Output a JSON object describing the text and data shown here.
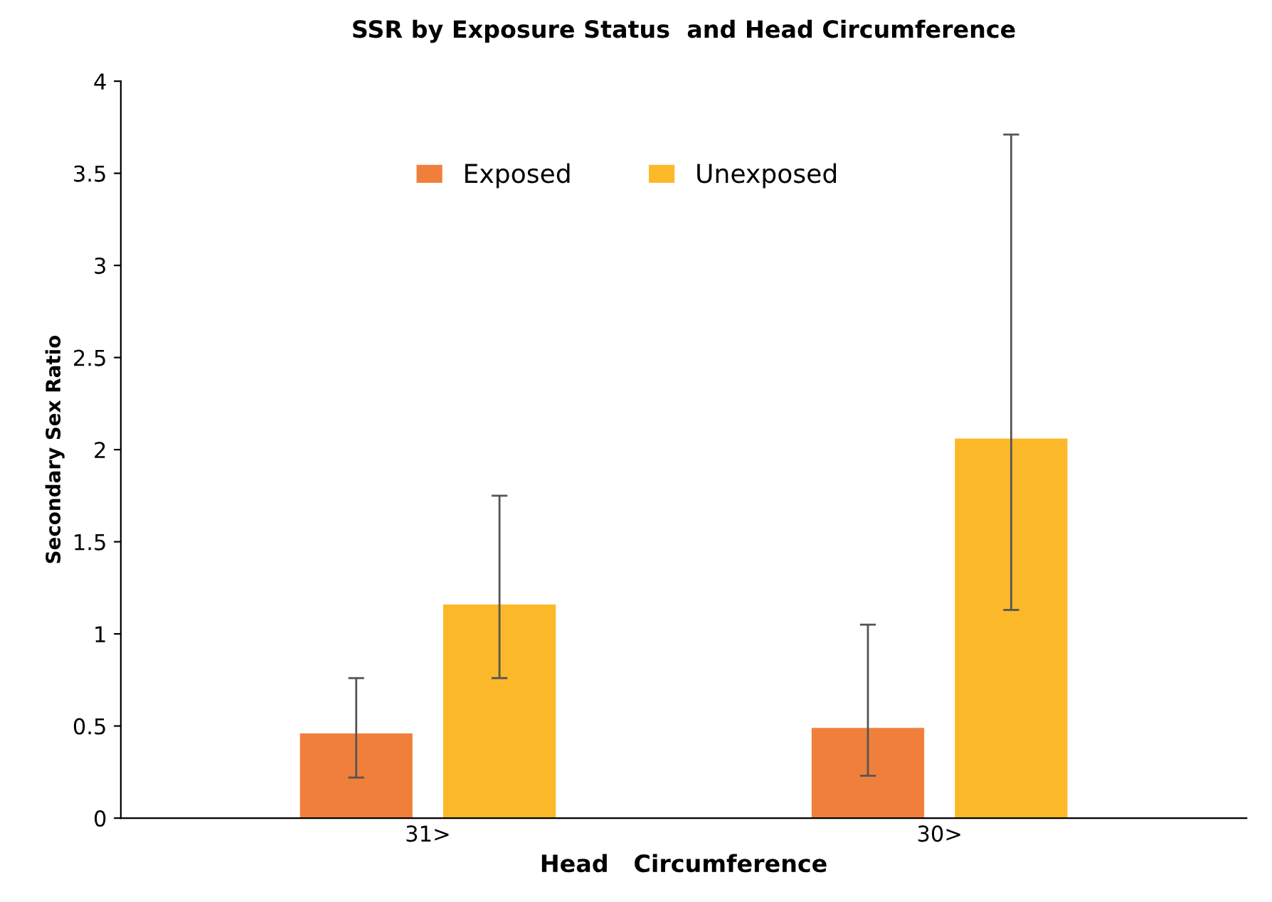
{
  "chart_data": {
    "type": "bar",
    "title": "SSR by Exposure Status  and Head Circumference",
    "xlabel": "Head   Circumference",
    "ylabel": "Secondary Sex Ratio",
    "categories": [
      "31>",
      "30>"
    ],
    "series": [
      {
        "name": "Exposed",
        "color": "#f07f3c",
        "values": [
          0.46,
          0.49
        ],
        "errors": [
          [
            0.22,
            0.76
          ],
          [
            0.23,
            1.05
          ]
        ]
      },
      {
        "name": "Unexposed",
        "color": "#fbb829",
        "values": [
          1.16,
          2.06
        ],
        "errors": [
          [
            0.76,
            1.75
          ],
          [
            1.13,
            3.71
          ]
        ]
      }
    ],
    "ylim": [
      0,
      4
    ],
    "yticks": [
      0,
      0.5,
      1,
      1.5,
      2,
      2.5,
      3,
      3.5,
      4
    ],
    "grid": false,
    "legend": "top"
  }
}
